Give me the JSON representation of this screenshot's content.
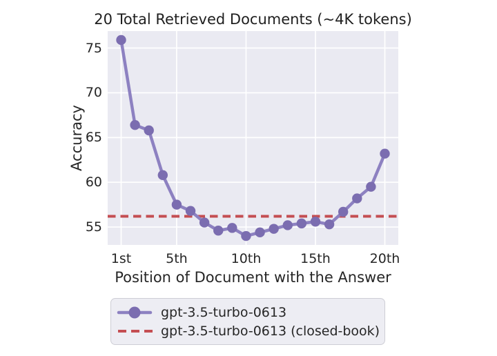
{
  "chart_data": {
    "type": "line",
    "title": "20 Total Retrieved Documents (~4K tokens)",
    "xlabel": "Position of Document with the Answer",
    "ylabel": "Accuracy",
    "x": [
      1,
      2,
      3,
      4,
      5,
      6,
      7,
      8,
      9,
      10,
      11,
      12,
      13,
      14,
      15,
      16,
      17,
      18,
      19,
      20
    ],
    "series": [
      {
        "name": "gpt-3.5-turbo-0613",
        "style": "solid-with-circle-markers",
        "line_color": "#8d81c1",
        "marker_color": "#7b6db0",
        "values": [
          75.9,
          66.4,
          65.8,
          60.8,
          57.5,
          56.8,
          55.5,
          54.6,
          54.9,
          54.0,
          54.4,
          54.8,
          55.2,
          55.4,
          55.6,
          55.3,
          56.7,
          58.2,
          59.5,
          63.2
        ]
      },
      {
        "name": "gpt-3.5-turbo-0613 (closed-book)",
        "style": "dashed-horizontal-reference",
        "line_color": "#c44e52",
        "value": 56.2
      }
    ],
    "xticks": {
      "values": [
        1,
        5,
        10,
        15,
        20
      ],
      "labels": [
        "1st",
        "5th",
        "10th",
        "15th",
        "20th"
      ]
    },
    "yticks": {
      "values": [
        55,
        60,
        65,
        70,
        75
      ],
      "labels": [
        "55",
        "60",
        "65",
        "70",
        "75"
      ]
    },
    "xlim": [
      0.03,
      20.97
    ],
    "ylim": [
      53.0,
      76.9
    ],
    "grid": true,
    "plot_background": "#eaeaf2",
    "grid_color": "#ffffff",
    "text_color": "#262626",
    "legend_position": "below-chart"
  }
}
